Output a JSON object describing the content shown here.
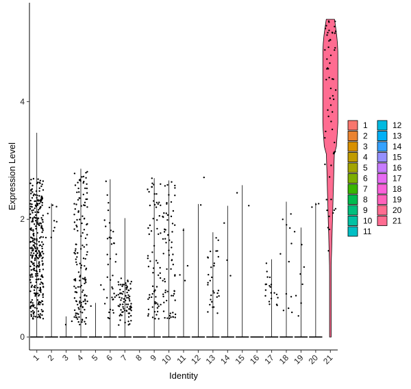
{
  "chart_data": {
    "type": "violin",
    "xlabel": "Identity",
    "ylabel": "Expression Level",
    "ylim": [
      -0.22,
      5.68
    ],
    "yticks": [
      0,
      2,
      4
    ],
    "grid": false,
    "legend_position": "right",
    "categories": [
      "1",
      "2",
      "3",
      "4",
      "5",
      "6",
      "7",
      "8",
      "9",
      "10",
      "11",
      "12",
      "13",
      "14",
      "15",
      "16",
      "17",
      "18",
      "19",
      "20",
      "21"
    ],
    "series": [
      {
        "name": "1",
        "color": "#F8766D",
        "max": 3.47,
        "n_dots": 330,
        "lo": 0.3,
        "hi": 2.7,
        "zero": 0.35
      },
      {
        "name": "2",
        "color": "#EA8331",
        "max": 2.27,
        "n_dots": 10,
        "lo": 1.6,
        "hi": 2.3,
        "zero": 0.5
      },
      {
        "name": "3",
        "color": "#D89000",
        "max": 0.35,
        "n_dots": 2,
        "lo": 0.2,
        "hi": 0.35,
        "zero": 0.6
      },
      {
        "name": "4",
        "color": "#C09B00",
        "max": 2.86,
        "n_dots": 150,
        "lo": 0.2,
        "hi": 2.86,
        "zero": 0.4
      },
      {
        "name": "5",
        "color": "#A3A500",
        "max": 0.58,
        "n_dots": 2,
        "lo": 0.4,
        "hi": 0.58,
        "zero": 0.6
      },
      {
        "name": "6",
        "color": "#7CAE00",
        "max": 2.68,
        "n_dots": 40,
        "lo": 0.3,
        "hi": 2.68,
        "zero": 0.5
      },
      {
        "name": "7",
        "color": "#39B600",
        "max": 2.02,
        "n_dots": 80,
        "lo": 0.2,
        "hi": 1.0,
        "zero": 0.45
      },
      {
        "name": "8",
        "color": "#00BB4E",
        "max": 0.0,
        "n_dots": 0,
        "lo": 0,
        "hi": 0,
        "zero": 0.6
      },
      {
        "name": "9",
        "color": "#00BF7D",
        "max": 2.7,
        "n_dots": 70,
        "lo": 0.3,
        "hi": 2.7,
        "zero": 0.45
      },
      {
        "name": "10",
        "color": "#00C1A3",
        "max": 2.66,
        "n_dots": 70,
        "lo": 0.3,
        "hi": 2.66,
        "zero": 0.45
      },
      {
        "name": "11",
        "color": "#00BFC4",
        "max": 1.85,
        "n_dots": 4,
        "lo": 0.9,
        "hi": 1.85,
        "zero": 0.6
      },
      {
        "name": "12",
        "color": "#00BAE0",
        "max": 2.26,
        "n_dots": 2,
        "lo": 2.2,
        "hi": 2.26,
        "zero": 0.6
      },
      {
        "name": "13",
        "color": "#00B0F6",
        "max": 1.78,
        "n_dots": 30,
        "lo": 0.4,
        "hi": 1.78,
        "zero": 0.5
      },
      {
        "name": "14",
        "color": "#35A2FF",
        "max": 2.23,
        "n_dots": 3,
        "lo": 0.6,
        "hi": 2.23,
        "zero": 0.6
      },
      {
        "name": "15",
        "color": "#9590FF",
        "max": 2.58,
        "n_dots": 2,
        "lo": 2.05,
        "hi": 2.58,
        "zero": 0.6
      },
      {
        "name": "16",
        "color": "#C77CFF",
        "max": 0.0,
        "n_dots": 0,
        "lo": 0,
        "hi": 0,
        "zero": 0.6
      },
      {
        "name": "17",
        "color": "#E76BF3",
        "max": 1.32,
        "n_dots": 20,
        "lo": 0.5,
        "hi": 1.32,
        "zero": 0.5
      },
      {
        "name": "18",
        "color": "#FA62DB",
        "max": 2.3,
        "n_dots": 12,
        "lo": 0.4,
        "hi": 2.3,
        "zero": 0.55
      },
      {
        "name": "19",
        "color": "#FF62BC",
        "max": 1.86,
        "n_dots": 8,
        "lo": 0.3,
        "hi": 1.86,
        "zero": 0.55
      },
      {
        "name": "20",
        "color": "#FF6C91",
        "max": 2.28,
        "n_dots": 3,
        "lo": 2.2,
        "hi": 2.28,
        "zero": 0.6
      },
      {
        "name": "21",
        "color": "#FF6C91",
        "max": 5.4,
        "n_dots": 60,
        "lo": 1.0,
        "hi": 5.4,
        "zero": 0.05
      }
    ]
  }
}
